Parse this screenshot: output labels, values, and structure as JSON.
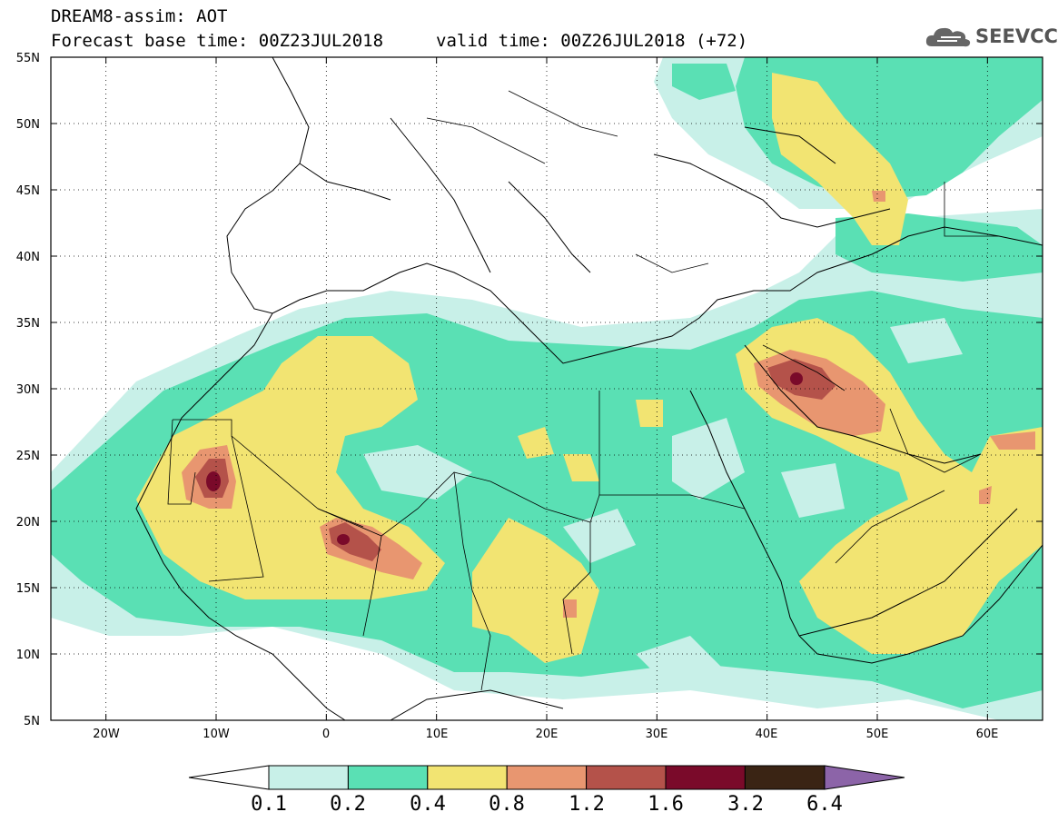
{
  "header": {
    "line1": "DREAM8-assim: AOT",
    "base_time": "Forecast base time: 00Z23JUL2018",
    "valid_time": "valid time: 00Z26JUL2018 (+72)"
  },
  "logo": {
    "text": "SEEVCCC",
    "icon": "cloud-icon"
  },
  "map": {
    "lon_range": [
      -25,
      65
    ],
    "lat_range": [
      5,
      55
    ],
    "lat_labels": [
      "55N",
      "50N",
      "45N",
      "40N",
      "35N",
      "30N",
      "25N",
      "20N",
      "15N",
      "10N",
      "5N"
    ],
    "lon_labels": [
      "20W",
      "10W",
      "0",
      "10E",
      "20E",
      "30E",
      "40E",
      "50E",
      "60E"
    ]
  },
  "colorbar": {
    "labels": [
      "0.1",
      "0.2",
      "0.4",
      "0.8",
      "1.2",
      "1.6",
      "3.2",
      "6.4"
    ],
    "colors": [
      "#c8f0e8",
      "#5ae0b4",
      "#f2e472",
      "#e89670",
      "#b4524a",
      "#7a0a2a",
      "#3a2414",
      "#8c64a8"
    ]
  }
}
